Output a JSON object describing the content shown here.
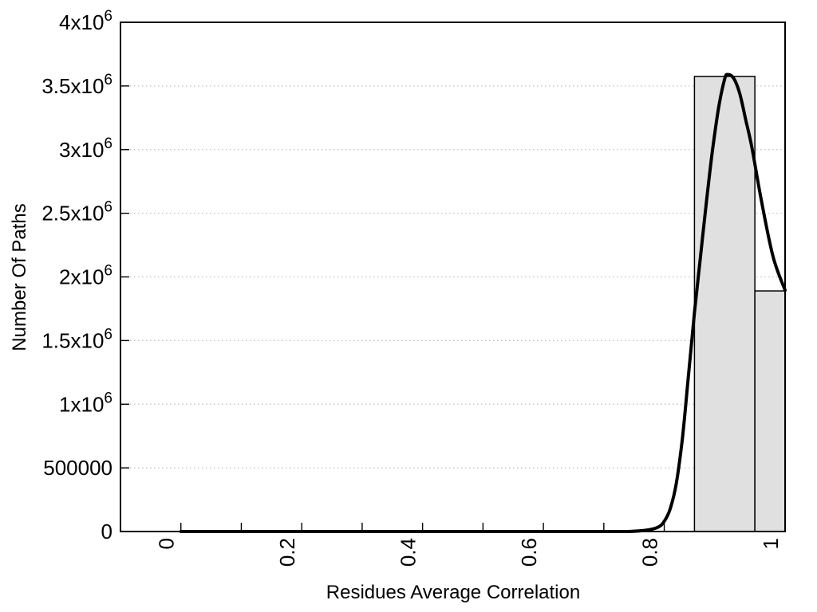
{
  "figure": {
    "background": "#ffffff"
  },
  "chart_data": {
    "type": "bar",
    "subtype": "histogram-with-density-curve",
    "title": "",
    "xlabel": "Residues Average Correlation",
    "ylabel": "Number Of Paths",
    "xlim": [
      -0.1,
      1.0
    ],
    "ylim": [
      0,
      4000000
    ],
    "grid": "horizontal-dotted",
    "legend": "none",
    "colors": {
      "bar_fill": "#e0e0e0",
      "bar_border": "#000000",
      "curve": "#000000",
      "grid": "#c0c0c0",
      "axis": "#000000",
      "text": "#000000"
    },
    "bars": [
      {
        "x_start": 0.85,
        "x_end": 0.95,
        "count": 3575000
      },
      {
        "x_start": 0.95,
        "x_end": 1.0,
        "count": 1890000
      }
    ],
    "curve_points": [
      [
        0.0,
        0
      ],
      [
        0.05,
        0
      ],
      [
        0.1,
        0
      ],
      [
        0.15,
        0
      ],
      [
        0.2,
        0
      ],
      [
        0.25,
        0
      ],
      [
        0.3,
        0
      ],
      [
        0.35,
        0
      ],
      [
        0.4,
        0
      ],
      [
        0.45,
        0
      ],
      [
        0.5,
        0
      ],
      [
        0.55,
        0
      ],
      [
        0.6,
        0
      ],
      [
        0.65,
        0
      ],
      [
        0.7,
        0
      ],
      [
        0.74,
        0
      ],
      [
        0.77,
        10000
      ],
      [
        0.79,
        35000
      ],
      [
        0.8,
        80000
      ],
      [
        0.81,
        180000
      ],
      [
        0.82,
        380000
      ],
      [
        0.83,
        730000
      ],
      [
        0.84,
        1220000
      ],
      [
        0.85,
        1720000
      ],
      [
        0.86,
        2160000
      ],
      [
        0.87,
        2600000
      ],
      [
        0.88,
        3000000
      ],
      [
        0.89,
        3330000
      ],
      [
        0.9,
        3555000
      ],
      [
        0.905,
        3590000
      ],
      [
        0.915,
        3560000
      ],
      [
        0.925,
        3440000
      ],
      [
        0.935,
        3230000
      ],
      [
        0.945,
        3020000
      ],
      [
        0.96,
        2620000
      ],
      [
        0.98,
        2160000
      ],
      [
        1.0,
        1895000
      ]
    ],
    "x_ticks_major": [
      {
        "value": 0.0,
        "label": "0"
      },
      {
        "value": 0.2,
        "label": "0.2"
      },
      {
        "value": 0.4,
        "label": "0.4"
      },
      {
        "value": 0.6,
        "label": "0.6"
      },
      {
        "value": 0.8,
        "label": "0.8"
      },
      {
        "value": 1.0,
        "label": "1"
      }
    ],
    "x_ticks_minor": [
      0.1,
      0.3,
      0.5,
      0.7,
      0.9
    ],
    "y_ticks": [
      {
        "value": 0,
        "label": "0"
      },
      {
        "value": 500000,
        "label": "500000"
      },
      {
        "value": 1000000,
        "label": "1x10^6"
      },
      {
        "value": 1500000,
        "label": "1.5x10^6"
      },
      {
        "value": 2000000,
        "label": "2x10^6"
      },
      {
        "value": 2500000,
        "label": "2.5x10^6"
      },
      {
        "value": 3000000,
        "label": "3x10^6"
      },
      {
        "value": 3500000,
        "label": "3.5x10^6"
      },
      {
        "value": 4000000,
        "label": "4x10^6"
      }
    ],
    "x_tick_label_rotation_deg": -90
  }
}
